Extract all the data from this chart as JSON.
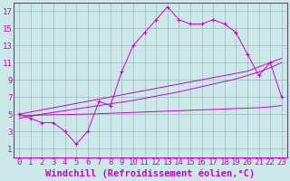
{
  "xlabel": "Windchill (Refroidissement éolien,°C)",
  "bg_color": "#cce8e8",
  "line_color": "#cc00cc",
  "grid_color": "#99bbbb",
  "x_values": [
    0,
    1,
    2,
    3,
    4,
    5,
    6,
    7,
    8,
    9,
    10,
    11,
    12,
    13,
    14,
    15,
    16,
    17,
    18,
    19,
    20,
    21,
    22,
    23
  ],
  "y_main": [
    5.0,
    4.5,
    4.0,
    4.0,
    3.0,
    1.5,
    3.0,
    6.5,
    6.0,
    10.0,
    13.0,
    14.5,
    16.0,
    17.5,
    16.0,
    15.5,
    15.5,
    16.0,
    15.5,
    14.5,
    12.0,
    9.5,
    11.0,
    7.0
  ],
  "y_line1": [
    5.0,
    5.25,
    5.5,
    5.75,
    6.0,
    6.25,
    6.5,
    6.75,
    7.0,
    7.25,
    7.5,
    7.75,
    8.0,
    8.25,
    8.5,
    8.75,
    9.0,
    9.25,
    9.5,
    9.75,
    10.0,
    10.5,
    11.0,
    11.5
  ],
  "y_line2": [
    4.5,
    4.75,
    5.0,
    5.2,
    5.4,
    5.6,
    5.8,
    6.0,
    6.2,
    6.4,
    6.6,
    6.85,
    7.1,
    7.35,
    7.6,
    7.9,
    8.2,
    8.5,
    8.8,
    9.1,
    9.5,
    9.9,
    10.4,
    11.0
  ],
  "y_line3": [
    4.8,
    4.85,
    4.9,
    4.92,
    4.95,
    4.97,
    5.0,
    5.05,
    5.1,
    5.15,
    5.2,
    5.25,
    5.3,
    5.35,
    5.4,
    5.45,
    5.5,
    5.55,
    5.6,
    5.65,
    5.7,
    5.75,
    5.85,
    6.0
  ],
  "ylim": [
    0,
    18
  ],
  "xlim": [
    -0.5,
    23.5
  ],
  "yticks": [
    1,
    3,
    5,
    7,
    9,
    11,
    13,
    15,
    17
  ],
  "xticks": [
    0,
    1,
    2,
    3,
    4,
    5,
    6,
    7,
    8,
    9,
    10,
    11,
    12,
    13,
    14,
    15,
    16,
    17,
    18,
    19,
    20,
    21,
    22,
    23
  ],
  "font_size": 6.5,
  "xlabel_fontsize": 7.5
}
